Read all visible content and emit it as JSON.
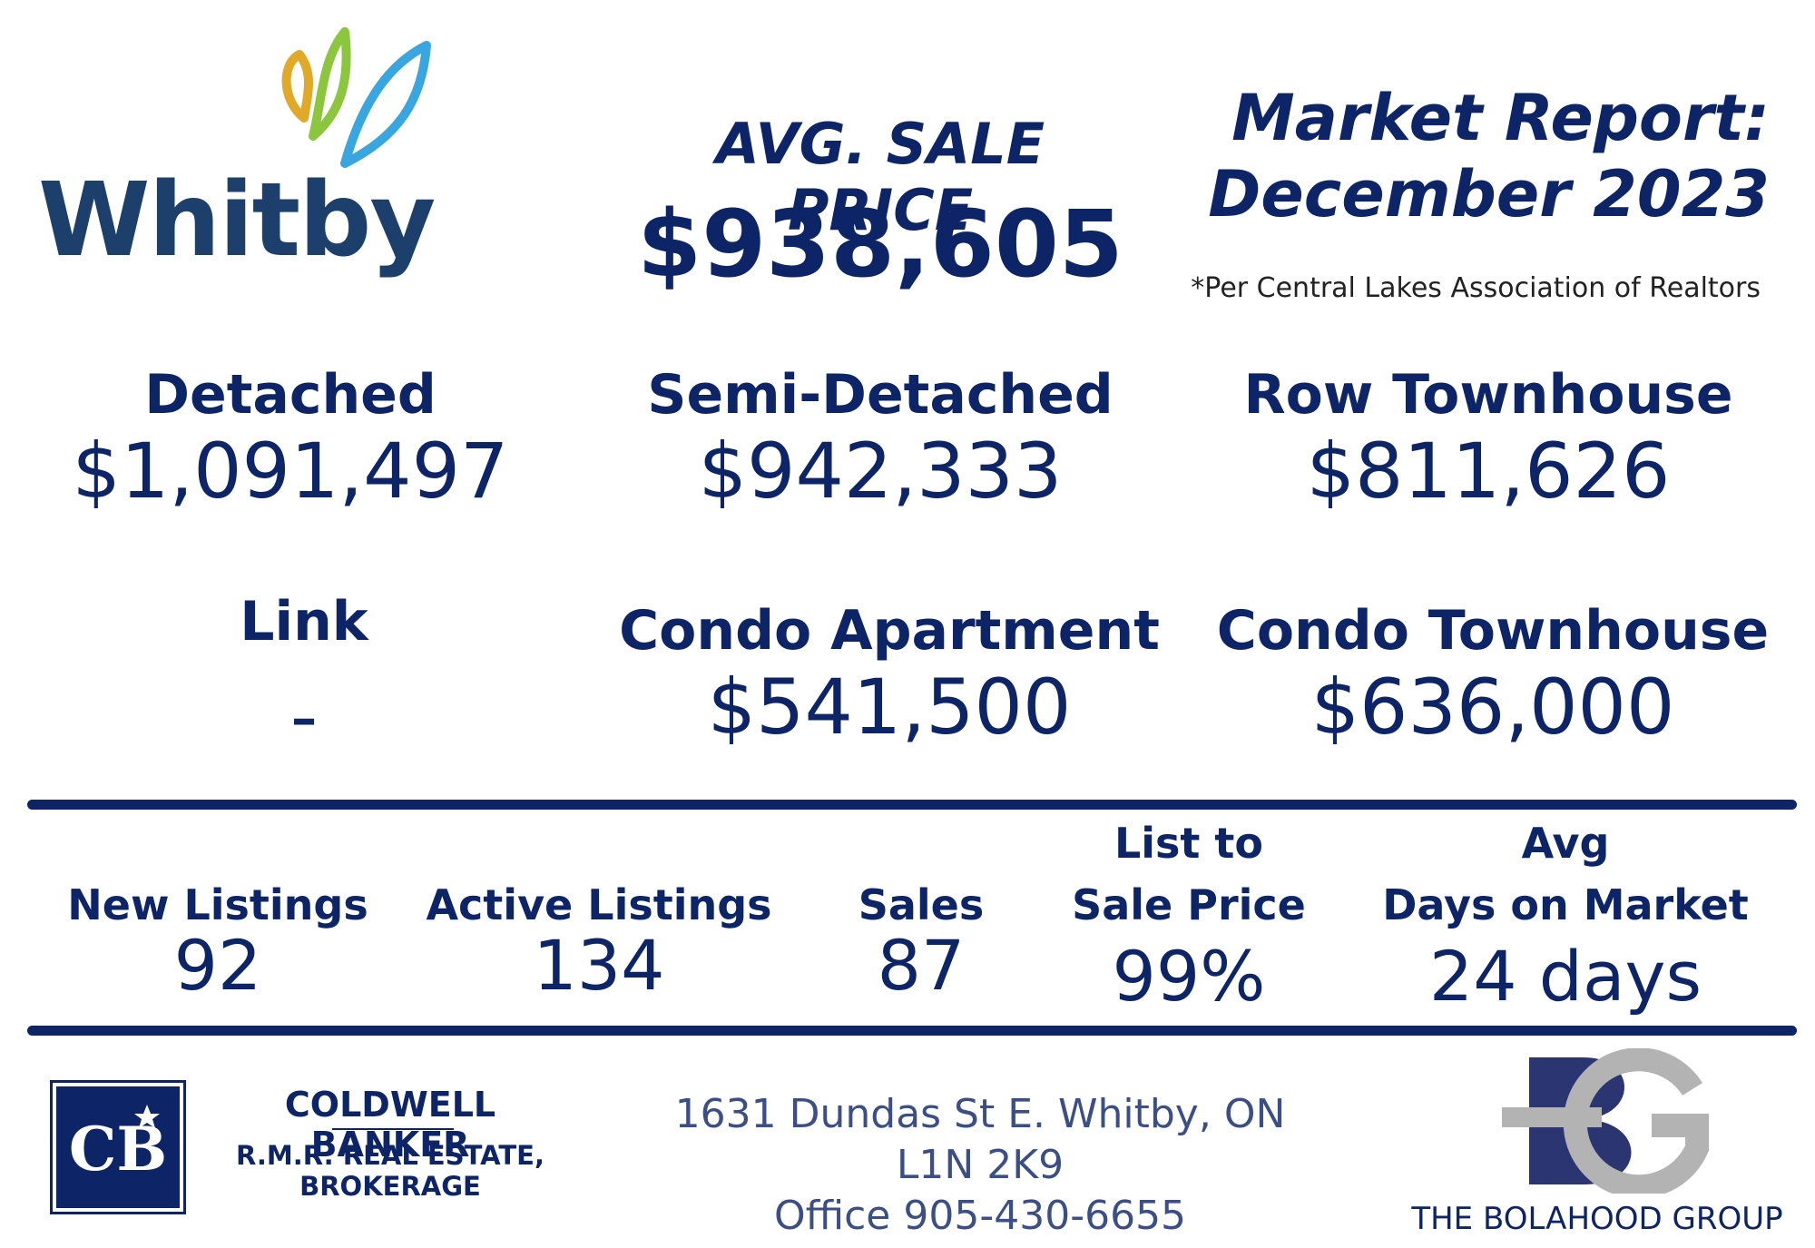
{
  "header": {
    "logo_text": "Whitby",
    "avg_label": "AVG. SALE PRICE",
    "avg_value": "$938,605",
    "report_title_line1": "Market Report:",
    "report_title_line2": "December 2023",
    "report_note": "*Per Central Lakes Association of Realtors"
  },
  "categories": [
    {
      "label": "Detached",
      "value": "$1,091,497"
    },
    {
      "label": "Semi-Detached",
      "value": "$942,333"
    },
    {
      "label": "Row Townhouse",
      "value": "$811,626"
    },
    {
      "label": "Link",
      "value": "-"
    },
    {
      "label": "Condo Apartment",
      "value": "$541,500"
    },
    {
      "label": "Condo Townhouse",
      "value": "$636,000"
    }
  ],
  "stats": [
    {
      "label_line1": "",
      "label_line2": "New Listings",
      "value": "92"
    },
    {
      "label_line1": "",
      "label_line2": "Active Listings",
      "value": "134"
    },
    {
      "label_line1": "",
      "label_line2": "Sales",
      "value": "87"
    },
    {
      "label_line1": "List to",
      "label_line2": "Sale Price",
      "value": "99%"
    },
    {
      "label_line1": "Avg",
      "label_line2": "Days on Market",
      "value": "24 days"
    }
  ],
  "footer": {
    "brokerage_name": "COLDWELL BANKER",
    "brokerage_sub_line1": "R.M.R. REAL ESTATE,",
    "brokerage_sub_line2": "BROKERAGE",
    "address_line1": "1631 Dundas St E. Whitby, ON L1N 2K9",
    "address_line2": "Office 905-430-6655",
    "group_name": "THE BOLAHOOD GROUP",
    "cb_logo_text": "CB"
  },
  "colors": {
    "navy": "#0d2466",
    "logo_yellow": "#e0a92a",
    "logo_green": "#8cc63f",
    "logo_blue": "#3aa6e0",
    "bg_gray": "#b3b3b3"
  }
}
